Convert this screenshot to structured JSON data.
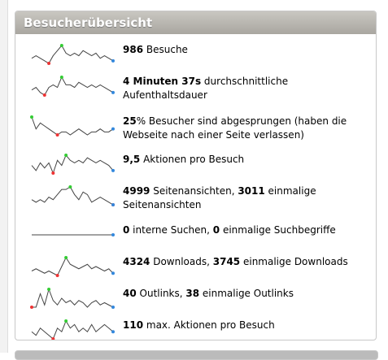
{
  "widget": {
    "title": "Besucherübersicht",
    "rows": [
      {
        "parts": [
          {
            "text": "986",
            "bold": true
          },
          {
            "text": " Besuche"
          }
        ],
        "sparkline": [
          5,
          6,
          5,
          4,
          3,
          6,
          8,
          10,
          7,
          6,
          7,
          6,
          8,
          7,
          6,
          7,
          5,
          6,
          5,
          4
        ]
      },
      {
        "parts": [
          {
            "text": "4 Minuten 37s",
            "bold": true
          },
          {
            "text": " durchschnittliche Aufenthaltsdauer"
          }
        ],
        "sparkline": [
          4,
          5,
          3,
          2,
          5,
          6,
          5,
          9,
          6,
          6,
          5,
          7,
          6,
          5,
          6,
          5,
          6,
          5,
          4,
          3
        ]
      },
      {
        "parts": [
          {
            "text": "25",
            "bold": true
          },
          {
            "text": "% Besucher sind abgesprungen (haben die Webseite nach einer Seite verlassen)"
          }
        ],
        "sparkline": [
          9,
          5,
          7,
          6,
          5,
          4,
          3,
          4,
          4,
          3,
          4,
          5,
          4,
          3,
          4,
          4,
          5,
          4,
          4,
          5
        ]
      },
      {
        "parts": [
          {
            "text": "9,5",
            "bold": true
          },
          {
            "text": " Aktionen pro Besuch"
          }
        ],
        "sparkline": [
          5,
          3,
          6,
          4,
          6,
          2,
          7,
          5,
          9,
          7,
          6,
          7,
          6,
          8,
          7,
          6,
          7,
          6,
          5,
          3
        ]
      },
      {
        "parts": [
          {
            "text": "4999",
            "bold": true
          },
          {
            "text": " Seitenansichten, "
          },
          {
            "text": "3011",
            "bold": true
          },
          {
            "text": " einmalige Seitenansichten"
          }
        ],
        "sparkline": [
          4,
          3,
          4,
          3,
          5,
          4,
          6,
          8,
          8,
          9,
          6,
          4,
          7,
          6,
          3,
          4,
          5,
          4,
          3,
          2
        ]
      },
      {
        "parts": [
          {
            "text": "0",
            "bold": true
          },
          {
            "text": " interne Suchen, "
          },
          {
            "text": "0",
            "bold": true
          },
          {
            "text": " einmalige Suchbegriffe"
          }
        ],
        "sparkline": [
          0,
          0,
          0,
          0,
          0,
          0,
          0,
          0,
          0,
          0,
          0,
          0,
          0,
          0,
          0,
          0,
          0,
          0,
          0,
          0
        ]
      },
      {
        "parts": [
          {
            "text": "4324",
            "bold": true
          },
          {
            "text": " Downloads, "
          },
          {
            "text": "3745",
            "bold": true
          },
          {
            "text": " einmalige Downloads"
          }
        ],
        "sparkline": [
          3,
          4,
          3,
          2,
          3,
          2,
          1,
          5,
          9,
          6,
          5,
          4,
          5,
          6,
          4,
          5,
          4,
          3,
          4,
          2
        ]
      },
      {
        "parts": [
          {
            "text": "40",
            "bold": true
          },
          {
            "text": " Outlinks, "
          },
          {
            "text": "38",
            "bold": true
          },
          {
            "text": " einmalige Outlinks"
          }
        ],
        "sparkline": [
          1,
          1,
          7,
          2,
          9,
          4,
          2,
          5,
          3,
          4,
          2,
          4,
          3,
          1,
          3,
          4,
          2,
          3,
          2,
          1
        ]
      },
      {
        "parts": [
          {
            "text": "110",
            "bold": true
          },
          {
            "text": " max. Aktionen pro Besuch"
          }
        ],
        "sparkline": [
          4,
          3,
          5,
          4,
          3,
          2,
          5,
          4,
          7,
          5,
          6,
          4,
          5,
          4,
          6,
          4,
          5,
          6,
          5,
          4
        ]
      }
    ]
  }
}
